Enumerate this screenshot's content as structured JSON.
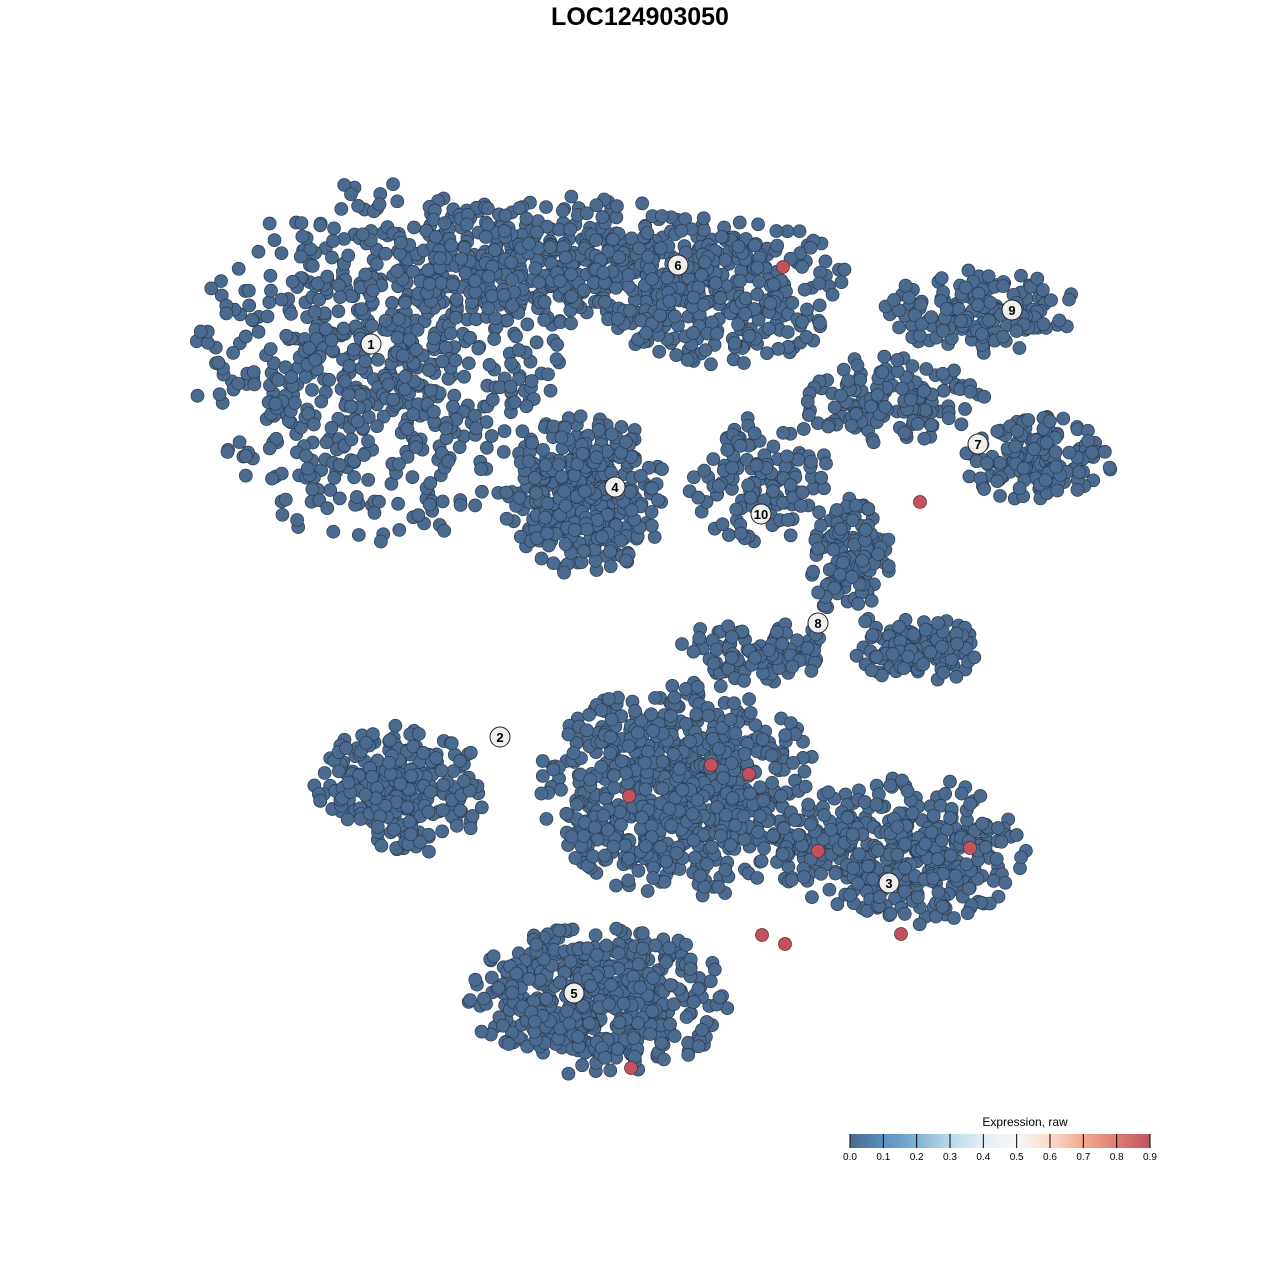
{
  "chart_data": {
    "type": "scatter",
    "title": "LOC124903050",
    "xlabel": "",
    "ylabel": "",
    "xlim": [
      -64,
      64
    ],
    "ylim": [
      -64,
      64
    ],
    "grid": false,
    "axes_visible": false,
    "base_color": "#4a6a8f",
    "clusters": [
      {
        "label": "1",
        "label_pos": [
          -26.9,
          29.6
        ],
        "blobs": [
          {
            "center": [
              -26,
              28
            ],
            "spread": [
              17,
              17
            ],
            "n": 700
          },
          {
            "center": [
              -8,
              38
            ],
            "spread": [
              16,
              6
            ],
            "n": 400
          }
        ]
      },
      {
        "label": "2",
        "label_pos": [
          -14.0,
          -9.7
        ],
        "blobs": [
          {
            "center": [
              -24,
              -15
            ],
            "spread": [
              8,
              6
            ],
            "n": 260
          }
        ]
      },
      {
        "label": "3",
        "label_pos": [
          24.9,
          -24.3
        ],
        "blobs": [
          {
            "center": [
              26,
              -21
            ],
            "spread": [
              12,
              7
            ],
            "n": 420
          }
        ]
      },
      {
        "label": "4",
        "label_pos": [
          -2.5,
          15.3
        ],
        "blobs": [
          {
            "center": [
              -5.5,
              14.5
            ],
            "spread": [
              7.5,
              7.5
            ],
            "n": 380
          }
        ]
      },
      {
        "label": "5",
        "label_pos": [
          -6.6,
          -35.3
        ],
        "blobs": [
          {
            "center": [
              -4,
              -36
            ],
            "spread": [
              12,
              7
            ],
            "n": 520
          }
        ]
      },
      {
        "label": "6",
        "label_pos": [
          3.8,
          37.5
        ],
        "blobs": [
          {
            "center": [
              8,
              35
            ],
            "spread": [
              12,
              7
            ],
            "n": 320
          }
        ]
      },
      {
        "label": "7",
        "label_pos": [
          33.8,
          19.6
        ],
        "blobs": [
          {
            "center": [
              25,
              24
            ],
            "spread": [
              9,
              4
            ],
            "n": 160
          },
          {
            "center": [
              40,
              18
            ],
            "spread": [
              7,
              4
            ],
            "n": 160
          }
        ]
      },
      {
        "label": "8",
        "label_pos": [
          17.8,
          1.7
        ],
        "blobs": [
          {
            "center": [
              21,
              8
            ],
            "spread": [
              4,
              6
            ],
            "n": 130
          },
          {
            "center": [
              28,
              -1
            ],
            "spread": [
              6,
              3
            ],
            "n": 130
          },
          {
            "center": [
              12,
              -1
            ],
            "spread": [
              8,
              3
            ],
            "n": 110
          }
        ]
      },
      {
        "label": "9",
        "label_pos": [
          37.2,
          33.0
        ],
        "blobs": [
          {
            "center": [
              34,
              33
            ],
            "spread": [
              9,
              4
            ],
            "n": 160
          }
        ]
      },
      {
        "label": "10",
        "label_pos": [
          12.1,
          12.6
        ],
        "blobs": [
          {
            "center": [
              12.5,
              16
            ],
            "spread": [
              7,
              6
            ],
            "n": 140
          }
        ]
      },
      {
        "label": "",
        "label_pos": null,
        "blobs": [
          {
            "center": [
              4,
              -15
            ],
            "spread": [
              13,
              10
            ],
            "n": 750
          }
        ]
      }
    ],
    "expressing_points": [
      {
        "x": 14.3,
        "y": 37.3,
        "value": 0.9
      },
      {
        "x": 28.0,
        "y": 13.8,
        "value": 0.9
      },
      {
        "x": 7.1,
        "y": -12.5,
        "value": 0.9
      },
      {
        "x": 10.9,
        "y": -13.4,
        "value": 0.9
      },
      {
        "x": -1.1,
        "y": -15.6,
        "value": 0.9
      },
      {
        "x": 17.8,
        "y": -21.1,
        "value": 0.9
      },
      {
        "x": 33.0,
        "y": -20.8,
        "value": 0.9
      },
      {
        "x": 12.2,
        "y": -29.5,
        "value": 0.9
      },
      {
        "x": 14.5,
        "y": -30.4,
        "value": 0.9
      },
      {
        "x": 26.1,
        "y": -29.4,
        "value": 0.9
      },
      {
        "x": -0.9,
        "y": -42.8,
        "value": 0.9
      }
    ],
    "legend": {
      "title": "Expression, raw",
      "position": "bottom-right",
      "ticks": [
        "0.0",
        "0.1",
        "0.2",
        "0.3",
        "0.4",
        "0.5",
        "0.6",
        "0.7",
        "0.8",
        "0.9"
      ],
      "colors": [
        "#4a6a8f",
        "#5b8fc0",
        "#7fb3d5",
        "#b9d9e8",
        "#e3eef5",
        "#f7f7f7",
        "#fbdccc",
        "#f2a98f",
        "#de7c72",
        "#c4525e"
      ]
    }
  }
}
